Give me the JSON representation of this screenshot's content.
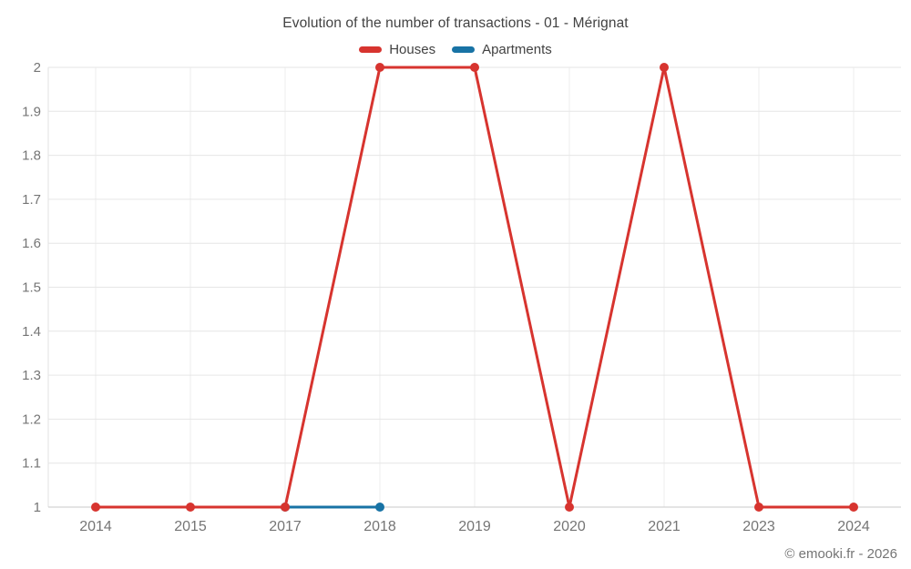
{
  "page": {
    "footer": "© emooki.fr - 2026"
  },
  "chart_data": {
    "type": "line",
    "title": "Evolution of the number of transactions - 01 - Mérignat",
    "categories": [
      "2014",
      "2015",
      "2017",
      "2018",
      "2019",
      "2020",
      "2021",
      "2023",
      "2024"
    ],
    "series": [
      {
        "name": "Houses",
        "color": "#d7342f",
        "values": [
          1,
          1,
          1,
          2,
          2,
          1,
          2,
          1,
          1
        ]
      },
      {
        "name": "Apartments",
        "color": "#1873a5",
        "values": [
          null,
          null,
          1,
          1,
          null,
          null,
          null,
          null,
          null
        ]
      }
    ],
    "ylim": [
      1,
      2
    ],
    "y_ticks": [
      "1",
      "1.1",
      "1.2",
      "1.3",
      "1.4",
      "1.5",
      "1.6",
      "1.7",
      "1.8",
      "1.9",
      "2"
    ],
    "grid": true,
    "legend_position": "top",
    "xlabel": "",
    "ylabel": ""
  }
}
